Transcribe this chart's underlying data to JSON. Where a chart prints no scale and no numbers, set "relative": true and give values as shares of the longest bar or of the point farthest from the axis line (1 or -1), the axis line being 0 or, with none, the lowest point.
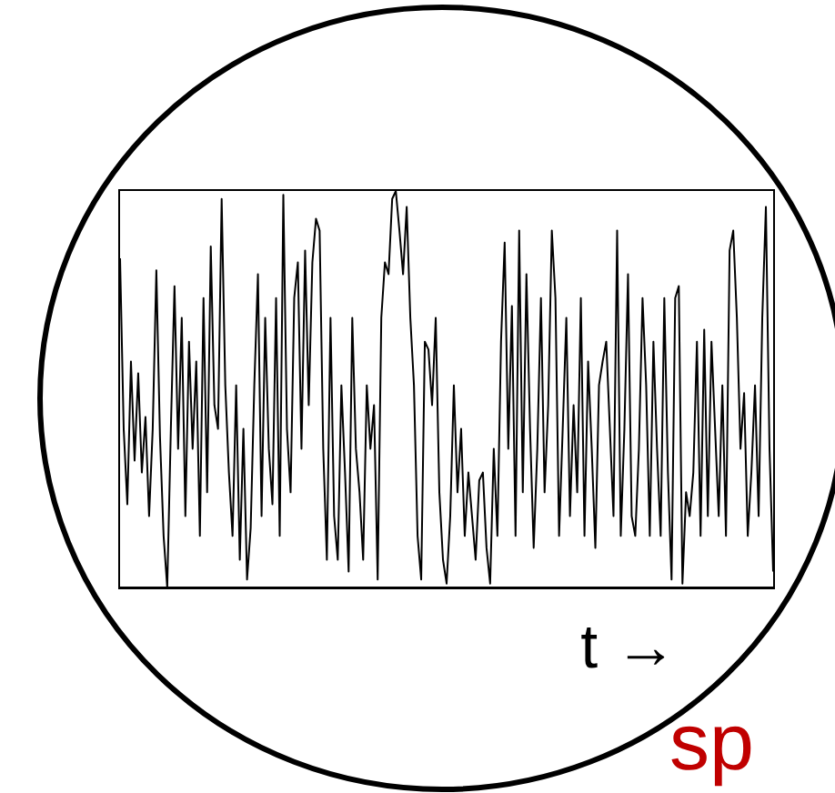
{
  "chart_data": {
    "type": "line",
    "relative": true,
    "xlabel": "t →",
    "color": "#000000",
    "marker": "none",
    "line_style": "solid",
    "grid": false,
    "legend": false,
    "annotations": [
      "sp"
    ],
    "categories": [
      null,
      null,
      null,
      null,
      null,
      null,
      null,
      null,
      null,
      null,
      null,
      null,
      null,
      null,
      null,
      null,
      null,
      null,
      null,
      null,
      null,
      null,
      null,
      null,
      null,
      null,
      null,
      null,
      null,
      null,
      null,
      null,
      null,
      null,
      null,
      null,
      null,
      null,
      null,
      null,
      null,
      null,
      null,
      null,
      null,
      null,
      null,
      null,
      null,
      null,
      null,
      null,
      null,
      null,
      null,
      null,
      null,
      null,
      null,
      null,
      null,
      null,
      null,
      null,
      null,
      null,
      null,
      null,
      null,
      null,
      null,
      null,
      null,
      null,
      null,
      null,
      null,
      null,
      null,
      null,
      null,
      null,
      null,
      null,
      null,
      null,
      null,
      null,
      null,
      null,
      null,
      null,
      null,
      null,
      null,
      null,
      null,
      null,
      null,
      null,
      null,
      null,
      null,
      null,
      null,
      null,
      null,
      null,
      null,
      null,
      null,
      null,
      null,
      null,
      null,
      null,
      null,
      null,
      null,
      null,
      null,
      null,
      null,
      null,
      null,
      null,
      null,
      null,
      null,
      null,
      null,
      null,
      null,
      null,
      null,
      null,
      null,
      null,
      null,
      null,
      null,
      null,
      null,
      null,
      null,
      null,
      null,
      null,
      null,
      null,
      null,
      null,
      null,
      null,
      null,
      null,
      null,
      null,
      null,
      null,
      null,
      null,
      null,
      null,
      null,
      null,
      null,
      null,
      null,
      null,
      null,
      null,
      null,
      null,
      null,
      null,
      null,
      null,
      null,
      null,
      null
    ],
    "values": [
      0.83,
      0.4,
      0.21,
      0.57,
      0.32,
      0.54,
      0.29,
      0.43,
      0.18,
      0.4,
      0.8,
      0.38,
      0.13,
      0,
      0.4,
      0.76,
      0.35,
      0.68,
      0.18,
      0.62,
      0.35,
      0.57,
      0.13,
      0.73,
      0.24,
      0.86,
      0.46,
      0.4,
      0.98,
      0.51,
      0.29,
      0.13,
      0.51,
      0.07,
      0.4,
      0.02,
      0.15,
      0.51,
      0.79,
      0.18,
      0.68,
      0.35,
      0.21,
      0.73,
      0.13,
      0.99,
      0.4,
      0.24,
      0.73,
      0.82,
      0.35,
      0.85,
      0.46,
      0.82,
      0.93,
      0.9,
      0.35,
      0.07,
      0.68,
      0.18,
      0.07,
      0.51,
      0.29,
      0.04,
      0.68,
      0.35,
      0.24,
      0.07,
      0.51,
      0.35,
      0.46,
      0.02,
      0.68,
      0.82,
      0.79,
      0.98,
      1,
      0.9,
      0.79,
      0.96,
      0.68,
      0.51,
      0.13,
      0.02,
      0.62,
      0.6,
      0.46,
      0.68,
      0.24,
      0.07,
      0.01,
      0.18,
      0.51,
      0.24,
      0.4,
      0.13,
      0.29,
      0.18,
      0.07,
      0.27,
      0.29,
      0.1,
      0.01,
      0.35,
      0.13,
      0.62,
      0.87,
      0.35,
      0.71,
      0.13,
      0.9,
      0.24,
      0.79,
      0.4,
      0.1,
      0.35,
      0.73,
      0.24,
      0.46,
      0.9,
      0.73,
      0.13,
      0.4,
      0.68,
      0.18,
      0.46,
      0.24,
      0.73,
      0.13,
      0.57,
      0.35,
      0.1,
      0.51,
      0.57,
      0.62,
      0.4,
      0.18,
      0.9,
      0.13,
      0.4,
      0.79,
      0.18,
      0.13,
      0.35,
      0.73,
      0.51,
      0.13,
      0.62,
      0.35,
      0.13,
      0.73,
      0.29,
      0.02,
      0.73,
      0.76,
      0.01,
      0.24,
      0.18,
      0.29,
      0.62,
      0.13,
      0.65,
      0.18,
      0.62,
      0.4,
      0.18,
      0.51,
      0.13,
      0.85,
      0.9,
      0.68,
      0.35,
      0.49,
      0.13,
      0.29,
      0.51,
      0.18,
      0.68,
      0.96,
      0.35,
      0.04
    ]
  }
}
